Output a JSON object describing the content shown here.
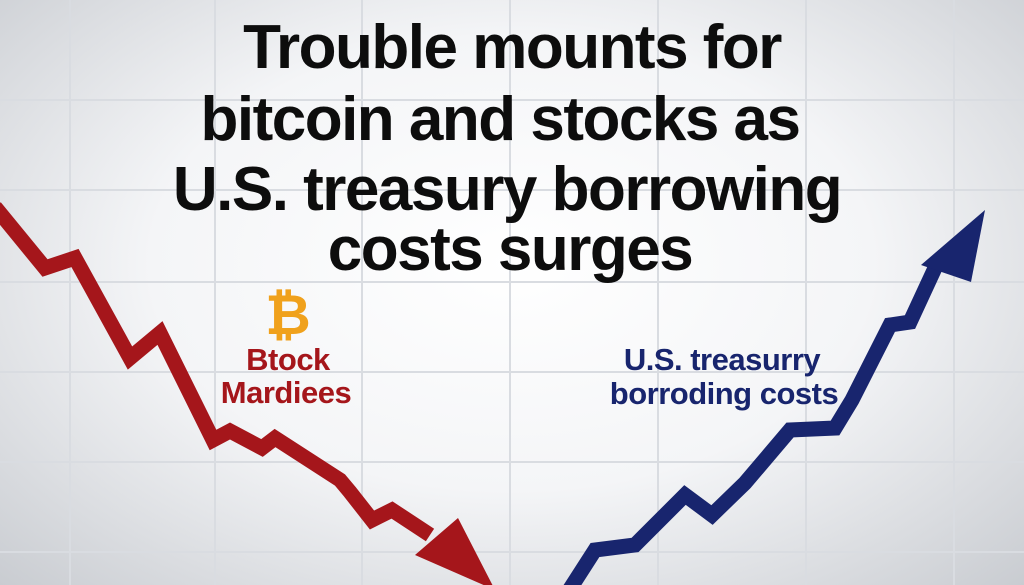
{
  "headline": {
    "lines": [
      "Trouble mounts for",
      "bitcoin and stocks as",
      "U.S. treasury borrowing",
      "costs surges"
    ]
  },
  "falling_series": {
    "label_lines": [
      "Btock",
      "Mardiees"
    ],
    "color": "#a5161b",
    "icon": "bitcoin-icon",
    "icon_glyph": "₿",
    "icon_color": "#f0a11c"
  },
  "rising_series": {
    "label_lines": [
      "U.S. treasurry",
      "borroding costs"
    ],
    "color": "#18256e"
  },
  "colors": {
    "background": "#f4f5f7",
    "grid": "#d9dce1",
    "headline": "#0d0d0d"
  }
}
